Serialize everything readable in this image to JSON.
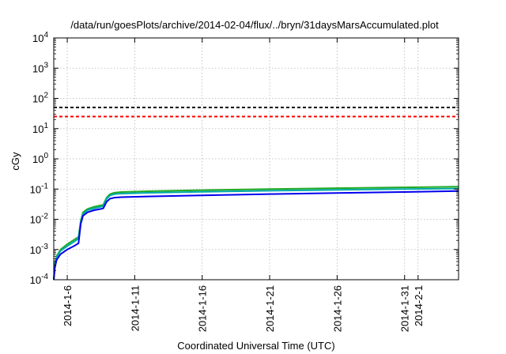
{
  "chart_data": {
    "type": "line",
    "title": "/data/run/goesPlots/archive/2014-02-04/flux/../bryn/31daysMarsAccumulated.plot",
    "xlabel": "Coordinated Universal Time (UTC)",
    "ylabel": "cGy",
    "y_scale": "log",
    "ylim": [
      0.0001,
      10000
    ],
    "xlim": [
      "2014-01-05",
      "2014-02-04"
    ],
    "grid": true,
    "legend": "none",
    "y_ticks": [
      {
        "value": 0.0001,
        "base": "10",
        "exp": "-4"
      },
      {
        "value": 0.001,
        "base": "10",
        "exp": "-3"
      },
      {
        "value": 0.01,
        "base": "10",
        "exp": "-2"
      },
      {
        "value": 0.1,
        "base": "10",
        "exp": "-1"
      },
      {
        "value": 1,
        "base": "10",
        "exp": "0"
      },
      {
        "value": 10,
        "base": "10",
        "exp": "1"
      },
      {
        "value": 100,
        "base": "10",
        "exp": "2"
      },
      {
        "value": 1000,
        "base": "10",
        "exp": "3"
      },
      {
        "value": 10000,
        "base": "10",
        "exp": "4"
      }
    ],
    "x_ticks": [
      {
        "date": "2014-01-06",
        "label": "2014-1-6"
      },
      {
        "date": "2014-01-11",
        "label": "2014-1-11"
      },
      {
        "date": "2014-01-16",
        "label": "2014-1-16"
      },
      {
        "date": "2014-01-21",
        "label": "2014-1-21"
      },
      {
        "date": "2014-01-26",
        "label": "2014-1-26"
      },
      {
        "date": "2014-01-31",
        "label": "2014-1-31"
      },
      {
        "date": "2014-02-01",
        "label": "2014-2-1"
      }
    ],
    "hlines": [
      {
        "value": 50,
        "color": "#000000",
        "style": "dashed"
      },
      {
        "value": 25,
        "color": "#ff0000",
        "style": "dashed"
      }
    ],
    "series": [
      {
        "color": "#22aa22",
        "points": [
          [
            "2014-01-05 00:00",
            0.0001
          ],
          [
            "2014-01-05 02:00",
            0.00035
          ],
          [
            "2014-01-05 05:00",
            0.0006
          ],
          [
            "2014-01-05 12:00",
            0.001
          ],
          [
            "2014-01-06 00:00",
            0.0015
          ],
          [
            "2014-01-06 12:00",
            0.0021
          ],
          [
            "2014-01-06 20:00",
            0.0026
          ],
          [
            "2014-01-07 00:00",
            0.009
          ],
          [
            "2014-01-07 04:00",
            0.017
          ],
          [
            "2014-01-07 12:00",
            0.022
          ],
          [
            "2014-01-08 00:00",
            0.026
          ],
          [
            "2014-01-08 12:00",
            0.029
          ],
          [
            "2014-01-08 16:00",
            0.03
          ],
          [
            "2014-01-08 22:00",
            0.052
          ],
          [
            "2014-01-09 04:00",
            0.068
          ],
          [
            "2014-01-09 12:00",
            0.076
          ],
          [
            "2014-01-10 00:00",
            0.08
          ],
          [
            "2014-01-12 00:00",
            0.085
          ],
          [
            "2014-01-16 00:00",
            0.092
          ],
          [
            "2014-01-21 00:00",
            0.1
          ],
          [
            "2014-01-26 00:00",
            0.107
          ],
          [
            "2014-01-31 00:00",
            0.114
          ],
          [
            "2014-02-04 00:00",
            0.12
          ]
        ]
      },
      {
        "color": "#00aaaa",
        "points": [
          [
            "2014-01-05 00:00",
            0.0001
          ],
          [
            "2014-01-05 02:00",
            0.0003
          ],
          [
            "2014-01-05 05:00",
            0.00055
          ],
          [
            "2014-01-05 12:00",
            0.0009
          ],
          [
            "2014-01-06 00:00",
            0.0013
          ],
          [
            "2014-01-06 12:00",
            0.0018
          ],
          [
            "2014-01-06 20:00",
            0.0023
          ],
          [
            "2014-01-07 00:00",
            0.008
          ],
          [
            "2014-01-07 04:00",
            0.015
          ],
          [
            "2014-01-07 12:00",
            0.02
          ],
          [
            "2014-01-08 00:00",
            0.023
          ],
          [
            "2014-01-08 12:00",
            0.026
          ],
          [
            "2014-01-08 16:00",
            0.027
          ],
          [
            "2014-01-08 22:00",
            0.047
          ],
          [
            "2014-01-09 04:00",
            0.061
          ],
          [
            "2014-01-09 12:00",
            0.068
          ],
          [
            "2014-01-10 00:00",
            0.071
          ],
          [
            "2014-01-12 00:00",
            0.075
          ],
          [
            "2014-01-16 00:00",
            0.081
          ],
          [
            "2014-01-21 00:00",
            0.088
          ],
          [
            "2014-01-26 00:00",
            0.094
          ],
          [
            "2014-01-31 00:00",
            0.1
          ],
          [
            "2014-02-04 00:00",
            0.104
          ]
        ]
      },
      {
        "color": "#0000ee",
        "points": [
          [
            "2014-01-05 00:00",
            0.0001
          ],
          [
            "2014-01-05 02:00",
            0.00025
          ],
          [
            "2014-01-05 05:00",
            0.00045
          ],
          [
            "2014-01-05 12:00",
            0.0007
          ],
          [
            "2014-01-06 00:00",
            0.001
          ],
          [
            "2014-01-06 12:00",
            0.0013
          ],
          [
            "2014-01-06 20:00",
            0.0016
          ],
          [
            "2014-01-07 00:00",
            0.007
          ],
          [
            "2014-01-07 04:00",
            0.013
          ],
          [
            "2014-01-07 12:00",
            0.017
          ],
          [
            "2014-01-08 00:00",
            0.02
          ],
          [
            "2014-01-08 12:00",
            0.022
          ],
          [
            "2014-01-08 16:00",
            0.023
          ],
          [
            "2014-01-08 22:00",
            0.038
          ],
          [
            "2014-01-09 04:00",
            0.048
          ],
          [
            "2014-01-09 12:00",
            0.052
          ],
          [
            "2014-01-10 00:00",
            0.054
          ],
          [
            "2014-01-12 00:00",
            0.057
          ],
          [
            "2014-01-16 00:00",
            0.062
          ],
          [
            "2014-01-21 00:00",
            0.068
          ],
          [
            "2014-01-26 00:00",
            0.074
          ],
          [
            "2014-01-31 00:00",
            0.08
          ],
          [
            "2014-02-04 00:00",
            0.086
          ]
        ]
      }
    ]
  }
}
